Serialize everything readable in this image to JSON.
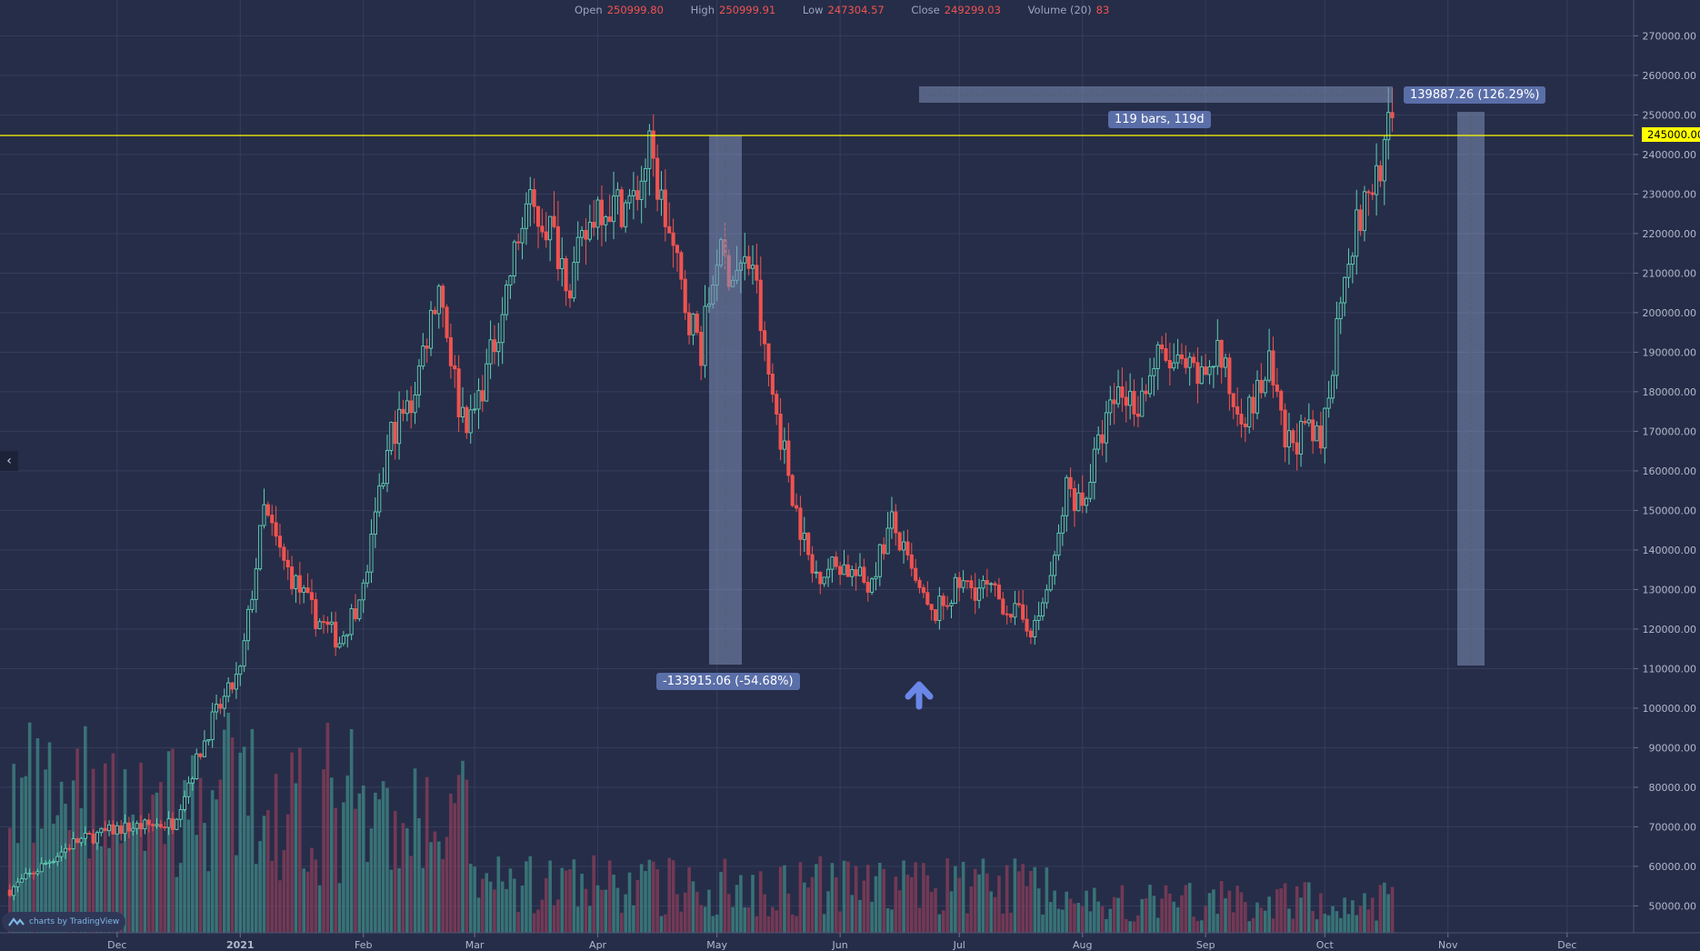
{
  "legend": {
    "open_label": "Open",
    "open": "250999.80",
    "high_label": "High",
    "high": "250999.91",
    "low_label": "Low",
    "low": "247304.57",
    "close_label": "Close",
    "close": "249299.03",
    "volume_label": "Volume (20)",
    "volume": "83"
  },
  "annotations": {
    "drawdown": "-133915.06 (-54.68%)",
    "bars": "119 bars, 119d",
    "rise": "139887.26 (126.29%)",
    "current_price": "245000.00"
  },
  "logo_text": "charts by TradingView",
  "colors": {
    "background": "#262d48",
    "up": "#5fd0b5",
    "down": "#ef5350",
    "horizontal_line": "#ffff00",
    "arrow": "#6a87e8",
    "measure_box": "#8090b8"
  },
  "icons": [
    "chevron-left-icon",
    "tradingview-logo-icon",
    "arrow-up-icon"
  ],
  "chart_data": {
    "type": "candlestick",
    "title": "",
    "y_ticks": [
      "270000.00",
      "260000.00",
      "250000.00",
      "240000.00",
      "230000.00",
      "220000.00",
      "210000.00",
      "200000.00",
      "190000.00",
      "180000.00",
      "170000.00",
      "160000.00",
      "150000.00",
      "140000.00",
      "130000.00",
      "120000.00",
      "110000.00",
      "100000.00",
      "90000.00",
      "80000.00",
      "70000.00",
      "60000.00",
      "50000.00"
    ],
    "ylim": [
      45000,
      275000
    ],
    "x_ticks": [
      [
        "Dec",
        "2020-12-01"
      ],
      [
        "2021",
        "2021-01-01"
      ],
      [
        "Feb",
        "2021-02-01"
      ],
      [
        "Mar",
        "2021-03-01"
      ],
      [
        "Apr",
        "2021-04-01"
      ],
      [
        "May",
        "2021-05-01"
      ],
      [
        "Jun",
        "2021-06-01"
      ],
      [
        "Jul",
        "2021-07-01"
      ],
      [
        "Aug",
        "2021-08-01"
      ],
      [
        "Sep",
        "2021-09-01"
      ],
      [
        "Oct",
        "2021-10-01"
      ],
      [
        "Nov",
        "2021-11-01"
      ],
      [
        "Dec",
        "2021-12-01"
      ]
    ],
    "horizontal_line": 245000,
    "approx_closes": [
      [
        "2020-11-04",
        54000
      ],
      [
        "2020-11-20",
        66000
      ],
      [
        "2020-12-01",
        69500
      ],
      [
        "2020-12-15",
        71000
      ],
      [
        "2020-12-25",
        97000
      ],
      [
        "2021-01-01",
        109000
      ],
      [
        "2021-01-07",
        150000
      ],
      [
        "2021-01-12",
        136600
      ],
      [
        "2021-01-20",
        123000
      ],
      [
        "2021-01-26",
        117000
      ],
      [
        "2021-02-01",
        130000
      ],
      [
        "2021-02-08",
        169500
      ],
      [
        "2021-02-13",
        177000
      ],
      [
        "2021-02-20",
        208000
      ],
      [
        "2021-02-25",
        177000
      ],
      [
        "2021-02-28",
        172000
      ],
      [
        "2021-03-05",
        188600
      ],
      [
        "2021-03-10",
        210000
      ],
      [
        "2021-03-14",
        227000
      ],
      [
        "2021-03-20",
        221500
      ],
      [
        "2021-03-25",
        208000
      ],
      [
        "2021-04-01",
        228000
      ],
      [
        "2021-04-05",
        227000
      ],
      [
        "2021-04-10",
        228000
      ],
      [
        "2021-04-14",
        240700
      ],
      [
        "2021-04-18",
        224000
      ],
      [
        "2021-04-23",
        202000
      ],
      [
        "2021-04-27",
        191000
      ],
      [
        "2021-05-01",
        215000
      ],
      [
        "2021-05-05",
        210000
      ],
      [
        "2021-05-10",
        213000
      ],
      [
        "2021-05-13",
        189000
      ],
      [
        "2021-05-17",
        169500
      ],
      [
        "2021-05-21",
        150000
      ],
      [
        "2021-05-25",
        134000
      ],
      [
        "2021-06-01",
        136600
      ],
      [
        "2021-06-08",
        131000
      ],
      [
        "2021-06-14",
        147000
      ],
      [
        "2021-06-20",
        131000
      ],
      [
        "2021-06-24",
        123000
      ],
      [
        "2021-07-01",
        131000
      ],
      [
        "2021-07-08",
        130000
      ],
      [
        "2021-07-15",
        124000
      ],
      [
        "2021-07-20",
        120000
      ],
      [
        "2021-07-25",
        136600
      ],
      [
        "2021-07-28",
        155800
      ],
      [
        "2021-08-01",
        151700
      ],
      [
        "2021-08-06",
        169500
      ],
      [
        "2021-08-10",
        180400
      ],
      [
        "2021-08-15",
        177000
      ],
      [
        "2021-08-20",
        188600
      ],
      [
        "2021-08-25",
        186000
      ],
      [
        "2021-08-31",
        183000
      ],
      [
        "2021-09-04",
        191000
      ],
      [
        "2021-09-08",
        177000
      ],
      [
        "2021-09-12",
        175000
      ],
      [
        "2021-09-17",
        186000
      ],
      [
        "2021-09-21",
        166700
      ],
      [
        "2021-09-26",
        169500
      ],
      [
        "2021-09-30",
        166700
      ],
      [
        "2021-10-03",
        188600
      ],
      [
        "2021-10-06",
        213000
      ],
      [
        "2021-10-10",
        224000
      ],
      [
        "2021-10-13",
        232500
      ],
      [
        "2021-10-16",
        240700
      ],
      [
        "2021-10-18",
        249299
      ]
    ]
  }
}
